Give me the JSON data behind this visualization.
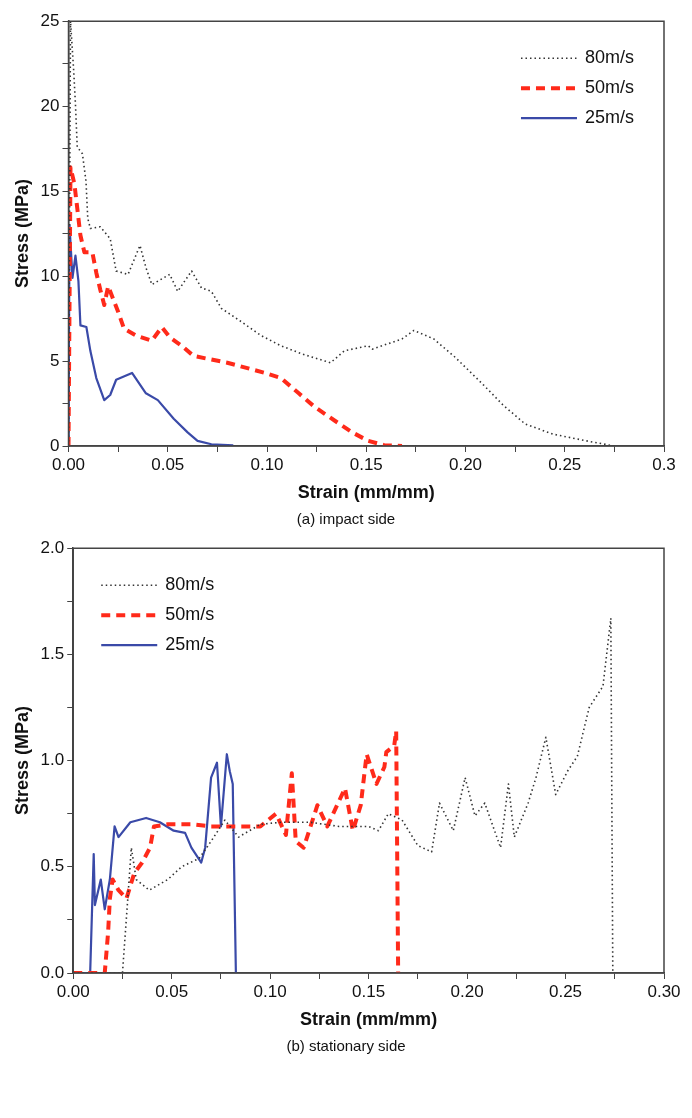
{
  "chart_data": [
    {
      "type": "line",
      "xlabel": "Strain (mm/mm)",
      "ylabel": "Stress (MPa)",
      "annotations": [
        "(a) impact side"
      ],
      "legend": "top right",
      "xlim": [
        0,
        0.3
      ],
      "xticks": [
        {
          "value": 0,
          "label": "0.00"
        },
        {
          "value": 0.025,
          "label": null
        },
        {
          "value": 0.05,
          "label": "0.05"
        },
        {
          "value": 0.075,
          "label": null
        },
        {
          "value": 0.1,
          "label": "0.10"
        },
        {
          "value": 0.125,
          "label": null
        },
        {
          "value": 0.15,
          "label": "0.15"
        },
        {
          "value": 0.175,
          "label": null
        },
        {
          "value": 0.2,
          "label": "0.20"
        },
        {
          "value": 0.225,
          "label": null
        },
        {
          "value": 0.25,
          "label": "0.25"
        },
        {
          "value": 0.275,
          "label": null
        },
        {
          "value": 0.3,
          "label": "0.3"
        }
      ],
      "ylim": [
        0,
        25
      ],
      "yticks": [
        0,
        {
          "value": 2.5,
          "label": null
        },
        5,
        {
          "value": 7.5,
          "label": null
        },
        10,
        {
          "value": 12.5,
          "label": null
        },
        15,
        {
          "value": 17.5,
          "label": null
        },
        20,
        {
          "value": 22.5,
          "label": null
        },
        25
      ],
      "series": [
        {
          "name": "80m/s",
          "color": "#333333",
          "line_style": "dotted",
          "x": [
            0,
            0.001,
            0.0026,
            0.0035,
            0.0044,
            0.007,
            0.0088,
            0.0097,
            0.011,
            0.016,
            0.021,
            0.024,
            0.03,
            0.036,
            0.039,
            0.042,
            0.051,
            0.055,
            0.062,
            0.067,
            0.072,
            0.077,
            0.086,
            0.097,
            0.107,
            0.118,
            0.132,
            0.139,
            0.151,
            0.153,
            0.168,
            0.174,
            0.184,
            0.195,
            0.209,
            0.219,
            0.23,
            0.244,
            0.261,
            0.275
          ],
          "values": [
            0,
            25,
            22.1,
            20.1,
            17.6,
            17.2,
            15.6,
            13.4,
            12.8,
            12.9,
            12.2,
            10.3,
            10.1,
            11.8,
            10.5,
            9.5,
            10.1,
            9.1,
            10.3,
            9.3,
            9.1,
            8.1,
            7.4,
            6.5,
            5.9,
            5.4,
            4.9,
            5.6,
            5.9,
            5.7,
            6.3,
            6.8,
            6.3,
            5.2,
            3.6,
            2.4,
            1.3,
            0.7,
            0.3,
            0
          ]
        },
        {
          "name": "50m/s",
          "color": "#ff2a1a",
          "line_style": "dashed",
          "x": [
            0,
            0.001,
            0.003,
            0.004,
            0.006,
            0.008,
            0.012,
            0.014,
            0.016,
            0.018,
            0.02,
            0.025,
            0.028,
            0.034,
            0.042,
            0.047,
            0.051,
            0.057,
            0.063,
            0.08,
            0.099,
            0.107,
            0.116,
            0.124,
            0.134,
            0.143,
            0.151,
            0.159,
            0.168
          ],
          "values": [
            0,
            16.4,
            15.4,
            14.4,
            12.4,
            11.4,
            11.4,
            10.2,
            9.2,
            8.3,
            9.4,
            7.9,
            6.9,
            6.5,
            6.2,
            7,
            6.4,
            5.9,
            5.3,
            4.9,
            4.3,
            4,
            3.1,
            2.3,
            1.5,
            0.8,
            0.3,
            0.05,
            0
          ]
        },
        {
          "name": "25m/s",
          "color": "#3a4aa8",
          "line_style": "solid",
          "x": [
            0,
            0.0005,
            0.002,
            0.0035,
            0.005,
            0.006,
            0.009,
            0.011,
            0.014,
            0.018,
            0.021,
            0.024,
            0.032,
            0.039,
            0.045,
            0.053,
            0.06,
            0.065,
            0.072,
            0.083
          ],
          "values": [
            0,
            13,
            9.9,
            11.2,
            9.7,
            7.1,
            7,
            5.6,
            4,
            2.7,
            3,
            3.9,
            4.3,
            3.1,
            2.7,
            1.6,
            0.8,
            0.3,
            0.1,
            0.04
          ]
        }
      ]
    },
    {
      "type": "line",
      "xlabel": "Strain (mm/mm)",
      "ylabel": "Stress (MPa)",
      "annotations": [
        "(b) stationary side"
      ],
      "legend": "top left",
      "xlim": [
        0,
        0.3
      ],
      "xticks": [
        {
          "value": 0,
          "label": "0.00"
        },
        {
          "value": 0.025,
          "label": null
        },
        {
          "value": 0.05,
          "label": "0.05"
        },
        {
          "value": 0.075,
          "label": null
        },
        {
          "value": 0.1,
          "label": "0.10"
        },
        {
          "value": 0.125,
          "label": null
        },
        {
          "value": 0.15,
          "label": "0.15"
        },
        {
          "value": 0.175,
          "label": null
        },
        {
          "value": 0.2,
          "label": "0.20"
        },
        {
          "value": 0.225,
          "label": null
        },
        {
          "value": 0.25,
          "label": "0.25"
        },
        {
          "value": 0.275,
          "label": null
        },
        {
          "value": 0.3,
          "label": "0.30"
        }
      ],
      "ylim": [
        0,
        2
      ],
      "yticks": [
        {
          "value": 0,
          "label": "0.0"
        },
        {
          "value": 0.25,
          "label": null
        },
        {
          "value": 0.5,
          "label": "0.5"
        },
        {
          "value": 0.75,
          "label": null
        },
        {
          "value": 1,
          "label": "1.0"
        },
        {
          "value": 1.25,
          "label": null
        },
        {
          "value": 1.5,
          "label": "1.5"
        },
        {
          "value": 1.75,
          "label": null
        },
        {
          "value": 2,
          "label": "2.0"
        }
      ],
      "series": [
        {
          "name": "80m/s",
          "color": "#333333",
          "line_style": "dotted",
          "x": [
            0,
            0.025,
            0.0277,
            0.0295,
            0.032,
            0.0386,
            0.048,
            0.055,
            0.064,
            0.07,
            0.077,
            0.084,
            0.095,
            0.106,
            0.12,
            0.135,
            0.15,
            0.155,
            0.16,
            0.167,
            0.175,
            0.182,
            0.186,
            0.193,
            0.199,
            0.204,
            0.209,
            0.217,
            0.221,
            0.224,
            0.231,
            0.235,
            0.24,
            0.245,
            0.251,
            0.256,
            0.262,
            0.269,
            0.273,
            0.274
          ],
          "values": [
            0,
            0,
            0.35,
            0.59,
            0.44,
            0.39,
            0.44,
            0.5,
            0.54,
            0.62,
            0.72,
            0.64,
            0.7,
            0.71,
            0.71,
            0.69,
            0.69,
            0.67,
            0.75,
            0.72,
            0.6,
            0.57,
            0.8,
            0.67,
            0.92,
            0.74,
            0.8,
            0.59,
            0.89,
            0.64,
            0.8,
            0.92,
            1.11,
            0.84,
            0.95,
            1.02,
            1.25,
            1.35,
            1.67,
            0
          ]
        },
        {
          "name": "50m/s",
          "color": "#ff2a1a",
          "line_style": "dashed",
          "x": [
            0,
            0.016,
            0.0177,
            0.0186,
            0.02,
            0.023,
            0.027,
            0.031,
            0.035,
            0.039,
            0.041,
            0.048,
            0.06,
            0.07,
            0.086,
            0.095,
            0.103,
            0.108,
            0.111,
            0.113,
            0.117,
            0.124,
            0.129,
            0.138,
            0.142,
            0.146,
            0.149,
            0.154,
            0.158,
            0.159,
            0.163,
            0.164,
            0.165
          ],
          "values": [
            0,
            0,
            0.19,
            0.35,
            0.44,
            0.39,
            0.35,
            0.47,
            0.52,
            0.59,
            0.69,
            0.7,
            0.7,
            0.69,
            0.69,
            0.69,
            0.75,
            0.65,
            0.94,
            0.62,
            0.59,
            0.79,
            0.69,
            0.87,
            0.67,
            0.79,
            1.03,
            0.89,
            0.97,
            1.04,
            1.07,
            1.14,
            0
          ]
        },
        {
          "name": "25m/s",
          "color": "#3a4aa8",
          "line_style": "solid",
          "x": [
            0,
            0.0086,
            0.0104,
            0.011,
            0.014,
            0.016,
            0.0186,
            0.021,
            0.023,
            0.029,
            0.037,
            0.044,
            0.051,
            0.0568,
            0.06,
            0.065,
            0.067,
            0.07,
            0.073,
            0.075,
            0.078,
            0.0795,
            0.081,
            0.0826
          ],
          "values": [
            0,
            0,
            0.56,
            0.32,
            0.44,
            0.3,
            0.44,
            0.69,
            0.64,
            0.71,
            0.73,
            0.71,
            0.67,
            0.66,
            0.59,
            0.52,
            0.59,
            0.92,
            0.99,
            0.69,
            1.03,
            0.95,
            0.89,
            0
          ]
        }
      ]
    }
  ]
}
